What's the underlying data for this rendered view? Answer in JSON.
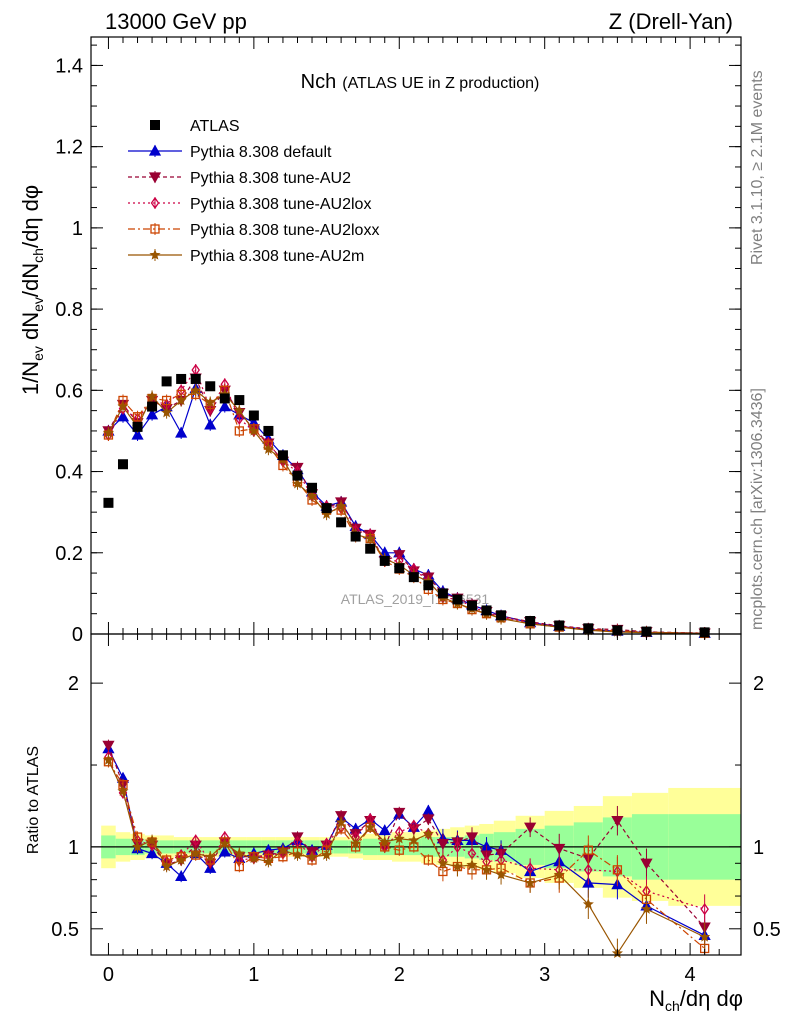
{
  "header": {
    "left": "13000 GeV pp",
    "right": "Z (Drell-Yan)"
  },
  "title": {
    "main": "Nch",
    "sub": "(ATLAS UE in Z production)"
  },
  "side_labels": {
    "rivet": "Rivet 3.1.10, ≥ 2.1M events",
    "mcplots": "mcplots.cern.ch [arXiv:1306.3436]"
  },
  "watermark": "ATLAS_2019_I1736531",
  "colors": {
    "atlas": "#000000",
    "default": "#0000cc",
    "au2": "#990033",
    "au2lox": "#cc0044",
    "au2loxx": "#cc4400",
    "au2m": "#995500",
    "band_inner": "#99ff99",
    "band_outer": "#ffff99"
  },
  "chart_data": [
    {
      "type": "scatter",
      "panel": "main",
      "ylabel": "1/N_ev dN_ev/dN_ch/dη dφ",
      "xlim": [
        -0.12,
        4.35
      ],
      "ylim": [
        0,
        1.47
      ],
      "yticks": [
        "0",
        "0.2",
        "0.4",
        "0.6",
        "0.8",
        "1",
        "1.2",
        "1.4"
      ],
      "legend_position": "upper-left",
      "x": [
        0.0,
        0.1,
        0.2,
        0.3,
        0.4,
        0.5,
        0.6,
        0.7,
        0.8,
        0.9,
        1.0,
        1.1,
        1.2,
        1.3,
        1.4,
        1.5,
        1.6,
        1.7,
        1.8,
        1.9,
        2.0,
        2.1,
        2.2,
        2.3,
        2.4,
        2.5,
        2.6,
        2.7,
        2.9,
        3.1,
        3.3,
        3.5,
        3.7,
        4.1
      ],
      "series": [
        {
          "name": "ATLAS",
          "values": [
            0.323,
            0.418,
            0.51,
            0.56,
            0.622,
            0.628,
            0.628,
            0.61,
            0.58,
            0.576,
            0.538,
            0.5,
            0.44,
            0.39,
            0.36,
            0.31,
            0.275,
            0.24,
            0.21,
            0.18,
            0.162,
            0.14,
            0.12,
            0.1,
            0.085,
            0.07,
            0.058,
            0.046,
            0.032,
            0.021,
            0.014,
            0.009,
            0.006,
            0.004
          ]
        },
        {
          "name": "Pythia 8.308 default",
          "values": [
            0.5,
            0.535,
            0.49,
            0.54,
            0.56,
            0.495,
            0.605,
            0.515,
            0.56,
            0.54,
            0.52,
            0.48,
            0.44,
            0.405,
            0.35,
            0.315,
            0.325,
            0.265,
            0.245,
            0.2,
            0.2,
            0.16,
            0.145,
            0.105,
            0.088,
            0.072,
            0.058,
            0.045,
            0.028,
            0.019,
            0.011,
            0.007,
            0.004,
            0.002
          ]
        },
        {
          "name": "Pythia 8.308 tune-AU2",
          "values": [
            0.5,
            0.565,
            0.52,
            0.575,
            0.555,
            0.575,
            0.63,
            0.55,
            0.6,
            0.545,
            0.505,
            0.47,
            0.425,
            0.41,
            0.345,
            0.31,
            0.325,
            0.26,
            0.245,
            0.18,
            0.195,
            0.155,
            0.14,
            0.1,
            0.088,
            0.073,
            0.055,
            0.044,
            0.03,
            0.02,
            0.013,
            0.011,
            0.0055,
            0.002
          ]
        },
        {
          "name": "Pythia 8.308 tune-AU2lox",
          "values": [
            0.49,
            0.555,
            0.53,
            0.575,
            0.565,
            0.6,
            0.65,
            0.555,
            0.615,
            0.53,
            0.5,
            0.47,
            0.425,
            0.4,
            0.34,
            0.315,
            0.31,
            0.255,
            0.245,
            0.18,
            0.18,
            0.16,
            0.13,
            0.09,
            0.085,
            0.068,
            0.052,
            0.042,
            0.028,
            0.018,
            0.012,
            0.008,
            0.004,
            0.0025
          ]
        },
        {
          "name": "Pythia 8.308 tune-AU2loxx",
          "values": [
            0.49,
            0.575,
            0.535,
            0.58,
            0.575,
            0.59,
            0.59,
            0.565,
            0.6,
            0.5,
            0.505,
            0.465,
            0.415,
            0.375,
            0.33,
            0.305,
            0.305,
            0.24,
            0.235,
            0.18,
            0.16,
            0.14,
            0.11,
            0.085,
            0.075,
            0.06,
            0.05,
            0.04,
            0.025,
            0.017,
            0.011,
            0.008,
            0.0045,
            0.0015
          ]
        },
        {
          "name": "Pythia 8.308 tune-AU2m",
          "values": [
            0.495,
            0.56,
            0.51,
            0.585,
            0.545,
            0.575,
            0.6,
            0.57,
            0.59,
            0.55,
            0.5,
            0.455,
            0.43,
            0.37,
            0.34,
            0.295,
            0.315,
            0.245,
            0.235,
            0.185,
            0.17,
            0.145,
            0.13,
            0.09,
            0.075,
            0.062,
            0.05,
            0.038,
            0.025,
            0.017,
            0.009,
            0.005,
            0.0035,
            0.0015
          ]
        }
      ]
    },
    {
      "type": "line",
      "panel": "ratio",
      "xlabel": "N_ch/dη dφ",
      "ylabel": "Ratio to ATLAS",
      "xlim": [
        -0.12,
        4.35
      ],
      "ylim": [
        0.34,
        2.3
      ],
      "yticks": [
        "0.5",
        "1",
        "2"
      ],
      "xticks": [
        "0",
        "1",
        "2",
        "3",
        "4"
      ],
      "x": [
        0.0,
        0.1,
        0.2,
        0.3,
        0.4,
        0.5,
        0.6,
        0.7,
        0.8,
        0.9,
        1.0,
        1.1,
        1.2,
        1.3,
        1.4,
        1.5,
        1.6,
        1.7,
        1.8,
        1.9,
        2.0,
        2.1,
        2.2,
        2.3,
        2.4,
        2.5,
        2.6,
        2.7,
        2.9,
        3.1,
        3.3,
        3.5,
        3.7,
        4.1
      ],
      "band_x": [
        -0.05,
        0.05,
        0.15,
        0.25,
        0.35,
        0.45,
        0.55,
        0.65,
        0.75,
        0.85,
        0.95,
        1.05,
        1.15,
        1.25,
        1.35,
        1.45,
        1.55,
        1.65,
        1.75,
        1.85,
        1.95,
        2.05,
        2.15,
        2.25,
        2.35,
        2.45,
        2.55,
        2.65,
        2.8,
        3.0,
        3.2,
        3.4,
        3.6,
        3.85,
        4.35
      ],
      "band_inner": [
        0.07,
        0.05,
        0.05,
        0.04,
        0.04,
        0.04,
        0.04,
        0.04,
        0.04,
        0.04,
        0.04,
        0.04,
        0.04,
        0.04,
        0.04,
        0.04,
        0.04,
        0.04,
        0.05,
        0.05,
        0.05,
        0.05,
        0.06,
        0.06,
        0.06,
        0.07,
        0.08,
        0.09,
        0.11,
        0.13,
        0.15,
        0.18,
        0.2,
        0.2
      ],
      "band_outer": [
        0.13,
        0.09,
        0.08,
        0.07,
        0.07,
        0.06,
        0.06,
        0.06,
        0.06,
        0.06,
        0.06,
        0.06,
        0.06,
        0.06,
        0.06,
        0.06,
        0.06,
        0.07,
        0.08,
        0.08,
        0.09,
        0.09,
        0.1,
        0.11,
        0.12,
        0.13,
        0.14,
        0.16,
        0.19,
        0.22,
        0.25,
        0.31,
        0.33,
        0.36
      ],
      "series": [
        {
          "name": "Pythia 8.308 default",
          "values": [
            1.6,
            1.42,
            0.99,
            0.96,
            0.9,
            0.82,
            0.96,
            0.87,
            0.97,
            0.93,
            0.96,
            0.98,
            0.99,
            1.04,
            0.98,
            1.01,
            1.18,
            1.11,
            1.17,
            1.1,
            1.2,
            1.12,
            1.22,
            1.05,
            1.04,
            1.04,
            1.0,
            0.98,
            0.85,
            0.91,
            0.78,
            0.77,
            0.64,
            0.46
          ]
        },
        {
          "name": "Pythia 8.308 tune-AU2",
          "values": [
            1.62,
            1.38,
            1.02,
            1.01,
            0.89,
            0.92,
            1.01,
            0.9,
            1.03,
            0.94,
            0.94,
            0.95,
            0.97,
            1.06,
            0.97,
            1.01,
            1.19,
            1.08,
            1.16,
            1.0,
            1.21,
            1.11,
            1.17,
            1.02,
            1.03,
            1.06,
            0.95,
            0.96,
            1.12,
            0.99,
            0.93,
            1.16,
            0.9,
            0.51
          ]
        },
        {
          "name": "Pythia 8.308 tune-AU2lox",
          "values": [
            1.55,
            1.33,
            1.04,
            1.01,
            0.91,
            0.95,
            1.04,
            0.91,
            1.06,
            0.92,
            0.93,
            0.95,
            0.96,
            1.03,
            0.94,
            1.02,
            1.12,
            1.06,
            1.17,
            1.0,
            1.09,
            1.13,
            1.08,
            0.92,
            1.0,
            0.96,
            0.91,
            0.92,
            0.87,
            0.86,
            0.86,
            0.85,
            0.73,
            0.62
          ]
        },
        {
          "name": "Pythia 8.308 tune-AU2loxx",
          "values": [
            1.52,
            1.38,
            1.06,
            1.03,
            0.92,
            0.94,
            0.95,
            0.92,
            1.03,
            0.88,
            0.94,
            0.93,
            0.94,
            0.97,
            0.92,
            0.98,
            1.11,
            1.0,
            1.12,
            1.0,
            0.98,
            1.0,
            0.92,
            0.85,
            0.88,
            0.86,
            0.86,
            0.87,
            0.78,
            0.81,
            0.98,
            0.86,
            0.68,
            0.38
          ]
        },
        {
          "name": "Pythia 8.308 tune-AU2m",
          "values": [
            1.53,
            1.34,
            1.0,
            1.04,
            0.88,
            0.92,
            0.96,
            0.94,
            1.02,
            0.96,
            0.93,
            0.91,
            0.98,
            0.95,
            0.94,
            0.95,
            1.15,
            1.02,
            1.12,
            1.03,
            1.05,
            1.04,
            1.08,
            0.9,
            0.88,
            0.89,
            0.86,
            0.83,
            0.78,
            0.83,
            0.65,
            0.35,
            0.62,
            0.45
          ]
        }
      ]
    }
  ]
}
